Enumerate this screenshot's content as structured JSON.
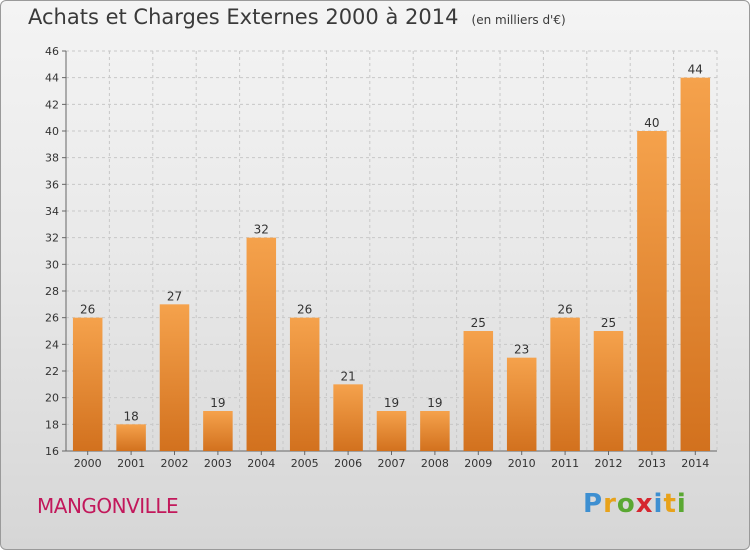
{
  "title": "Achats et Charges Externes 2000 à 2014",
  "unit": "(en milliers d'€)",
  "place": "MANGONVILLE",
  "logo": {
    "text": "Proxiti",
    "letters": [
      {
        "ch": "P",
        "color": "#3d8fd1"
      },
      {
        "ch": "r",
        "color": "#e8a21a"
      },
      {
        "ch": "o",
        "color": "#5aa832"
      },
      {
        "ch": "x",
        "color": "#d6262f"
      },
      {
        "ch": "i",
        "color": "#3d8fd1"
      },
      {
        "ch": "t",
        "color": "#e8a21a"
      },
      {
        "ch": "i",
        "color": "#5aa832"
      }
    ]
  },
  "chart_data": {
    "type": "bar",
    "categories": [
      "2000",
      "2001",
      "2002",
      "2003",
      "2004",
      "2005",
      "2006",
      "2007",
      "2008",
      "2009",
      "2010",
      "2011",
      "2012",
      "2013",
      "2014"
    ],
    "values": [
      26,
      18,
      27,
      19,
      32,
      26,
      21,
      19,
      19,
      25,
      23,
      26,
      25,
      40,
      44
    ],
    "ylim": [
      16,
      46
    ],
    "yticks": [
      16,
      18,
      20,
      22,
      24,
      26,
      28,
      30,
      32,
      34,
      36,
      38,
      40,
      42,
      44,
      46
    ],
    "grid": true,
    "bar_color_top": "#f5a24c",
    "bar_color_bottom": "#d2711e"
  }
}
